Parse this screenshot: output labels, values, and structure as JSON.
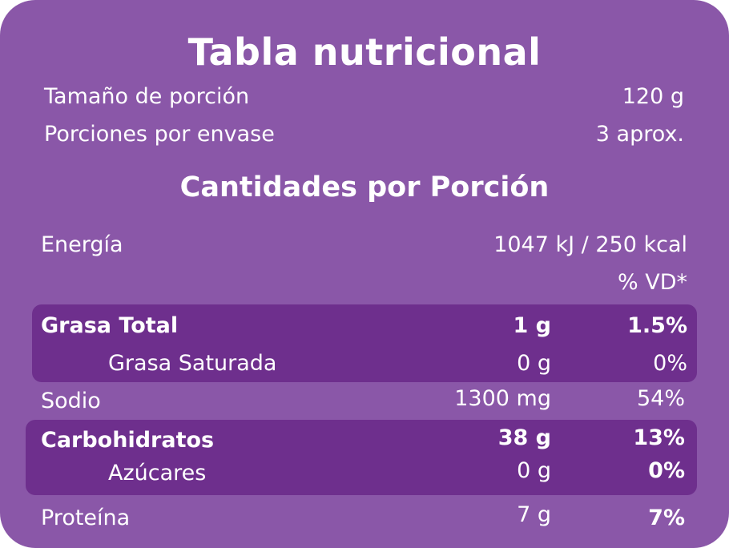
{
  "title": "Tabla nutricional",
  "serving": {
    "size_label": "Tamaño de porción",
    "size_value": "120 g",
    "per_pack_label": "Porciones por envase",
    "per_pack_value": "3 aprox."
  },
  "section_title": "Cantidades por Porción",
  "energy": {
    "label": "Energía",
    "value": "1047 kJ / 250 kcal"
  },
  "dv_header": "% VD*",
  "rows": [
    {
      "label": "Grasa Total",
      "amount": "1 g",
      "dv": "1.5%"
    },
    {
      "label": "Grasa Saturada",
      "amount": "0 g",
      "dv": "0%"
    },
    {
      "label": "Sodio",
      "amount": "1300 mg",
      "dv": "54%"
    },
    {
      "label": "Carbohidratos",
      "amount": "38 g",
      "dv": "13%"
    },
    {
      "label": "Azúcares",
      "amount": "0 g",
      "dv": "0%"
    },
    {
      "label": "Proteína",
      "amount": "7 g",
      "dv": "7%"
    }
  ],
  "colors": {
    "background": "#8a57a8",
    "highlight": "#6e2f8d",
    "text": "#ffffff"
  }
}
